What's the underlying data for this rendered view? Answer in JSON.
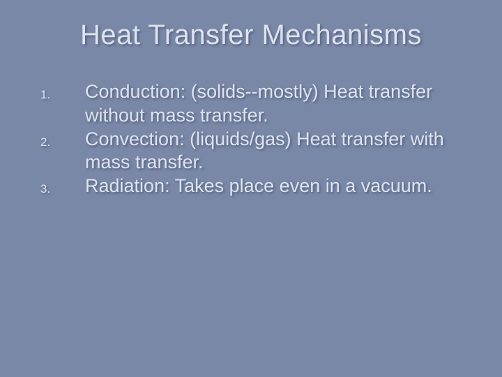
{
  "slide": {
    "title": "Heat Transfer Mechanisms",
    "title_fontsize": 40,
    "title_color": "#dce3ef",
    "body_fontsize": 27,
    "body_color": "#dce3ef",
    "num_fontsize": 17,
    "background_color": "#7a88a8",
    "items": [
      {
        "num": "1.",
        "text": "Conduction: (solids--mostly) Heat transfer without mass transfer."
      },
      {
        "num": "2.",
        "text": "Convection: (liquids/gas) Heat transfer with mass transfer."
      },
      {
        "num": "3.",
        "text": "Radiation: Takes place even in a vacuum."
      }
    ]
  }
}
